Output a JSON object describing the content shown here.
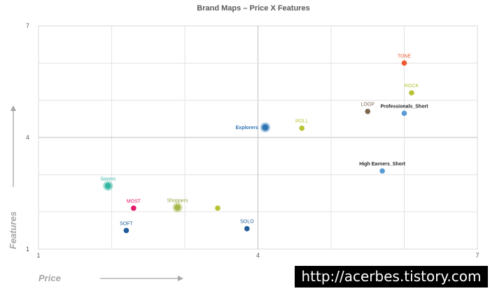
{
  "chart_data": {
    "type": "scatter",
    "title": "Brand Maps – Price X Features",
    "xlabel": "Price",
    "ylabel": "Features",
    "xlim": [
      1,
      7
    ],
    "ylim": [
      1,
      7
    ],
    "x_ticks": [
      "1",
      "4",
      "7"
    ],
    "y_ticks": [
      "1",
      "4",
      "7"
    ],
    "grid": true,
    "points": [
      {
        "label": "TONE",
        "x": 6.0,
        "y": 6.0,
        "color": "#ef5b2f",
        "bubble": false,
        "label_pos": "above"
      },
      {
        "label": "ROCK",
        "x": 6.1,
        "y": 5.2,
        "color": "#b5c334",
        "bubble": false,
        "label_pos": "above"
      },
      {
        "label": "LOOP",
        "x": 5.5,
        "y": 4.7,
        "color": "#7a6651",
        "bubble": false,
        "label_pos": "above"
      },
      {
        "label": "Professionals_Short",
        "x": 6.0,
        "y": 4.65,
        "color": "#5b9bd5",
        "bubble": false,
        "label_pos": "above",
        "label_color": "#262626",
        "bold": true
      },
      {
        "label": "ROLL",
        "x": 4.6,
        "y": 4.25,
        "color": "#b5c334",
        "bubble": false,
        "label_pos": "above"
      },
      {
        "label": "Explorers",
        "x": 4.1,
        "y": 4.27,
        "color": "#2e75b6",
        "bubble": true,
        "label_pos": "left",
        "label_color": "#2e75b6",
        "bold": true
      },
      {
        "label": "High Earners_Short",
        "x": 5.7,
        "y": 3.1,
        "color": "#5b9bd5",
        "bubble": false,
        "label_pos": "above",
        "label_color": "#262626",
        "bold": true
      },
      {
        "label": "Savers",
        "x": 1.95,
        "y": 2.7,
        "color": "#35b7a3",
        "bubble": true,
        "label_pos": "above",
        "label_color": "#35b7a3"
      },
      {
        "label": "MOST",
        "x": 2.3,
        "y": 2.1,
        "color": "#e5196a",
        "bubble": false,
        "label_pos": "above"
      },
      {
        "label": "Shoppers",
        "x": 2.9,
        "y": 2.12,
        "color": "#a4b84a",
        "bubble": true,
        "label_pos": "above",
        "label_color": "#8fa23c"
      },
      {
        "label": "",
        "x": 3.45,
        "y": 2.1,
        "color": "#b5c334",
        "bubble": false,
        "label_pos": "above"
      },
      {
        "label": "SOFT",
        "x": 2.2,
        "y": 1.5,
        "color": "#1f5c99",
        "bubble": false,
        "label_pos": "above"
      },
      {
        "label": "SOLO",
        "x": 3.85,
        "y": 1.55,
        "color": "#1f5c99",
        "bubble": false,
        "label_pos": "above"
      }
    ]
  }
}
